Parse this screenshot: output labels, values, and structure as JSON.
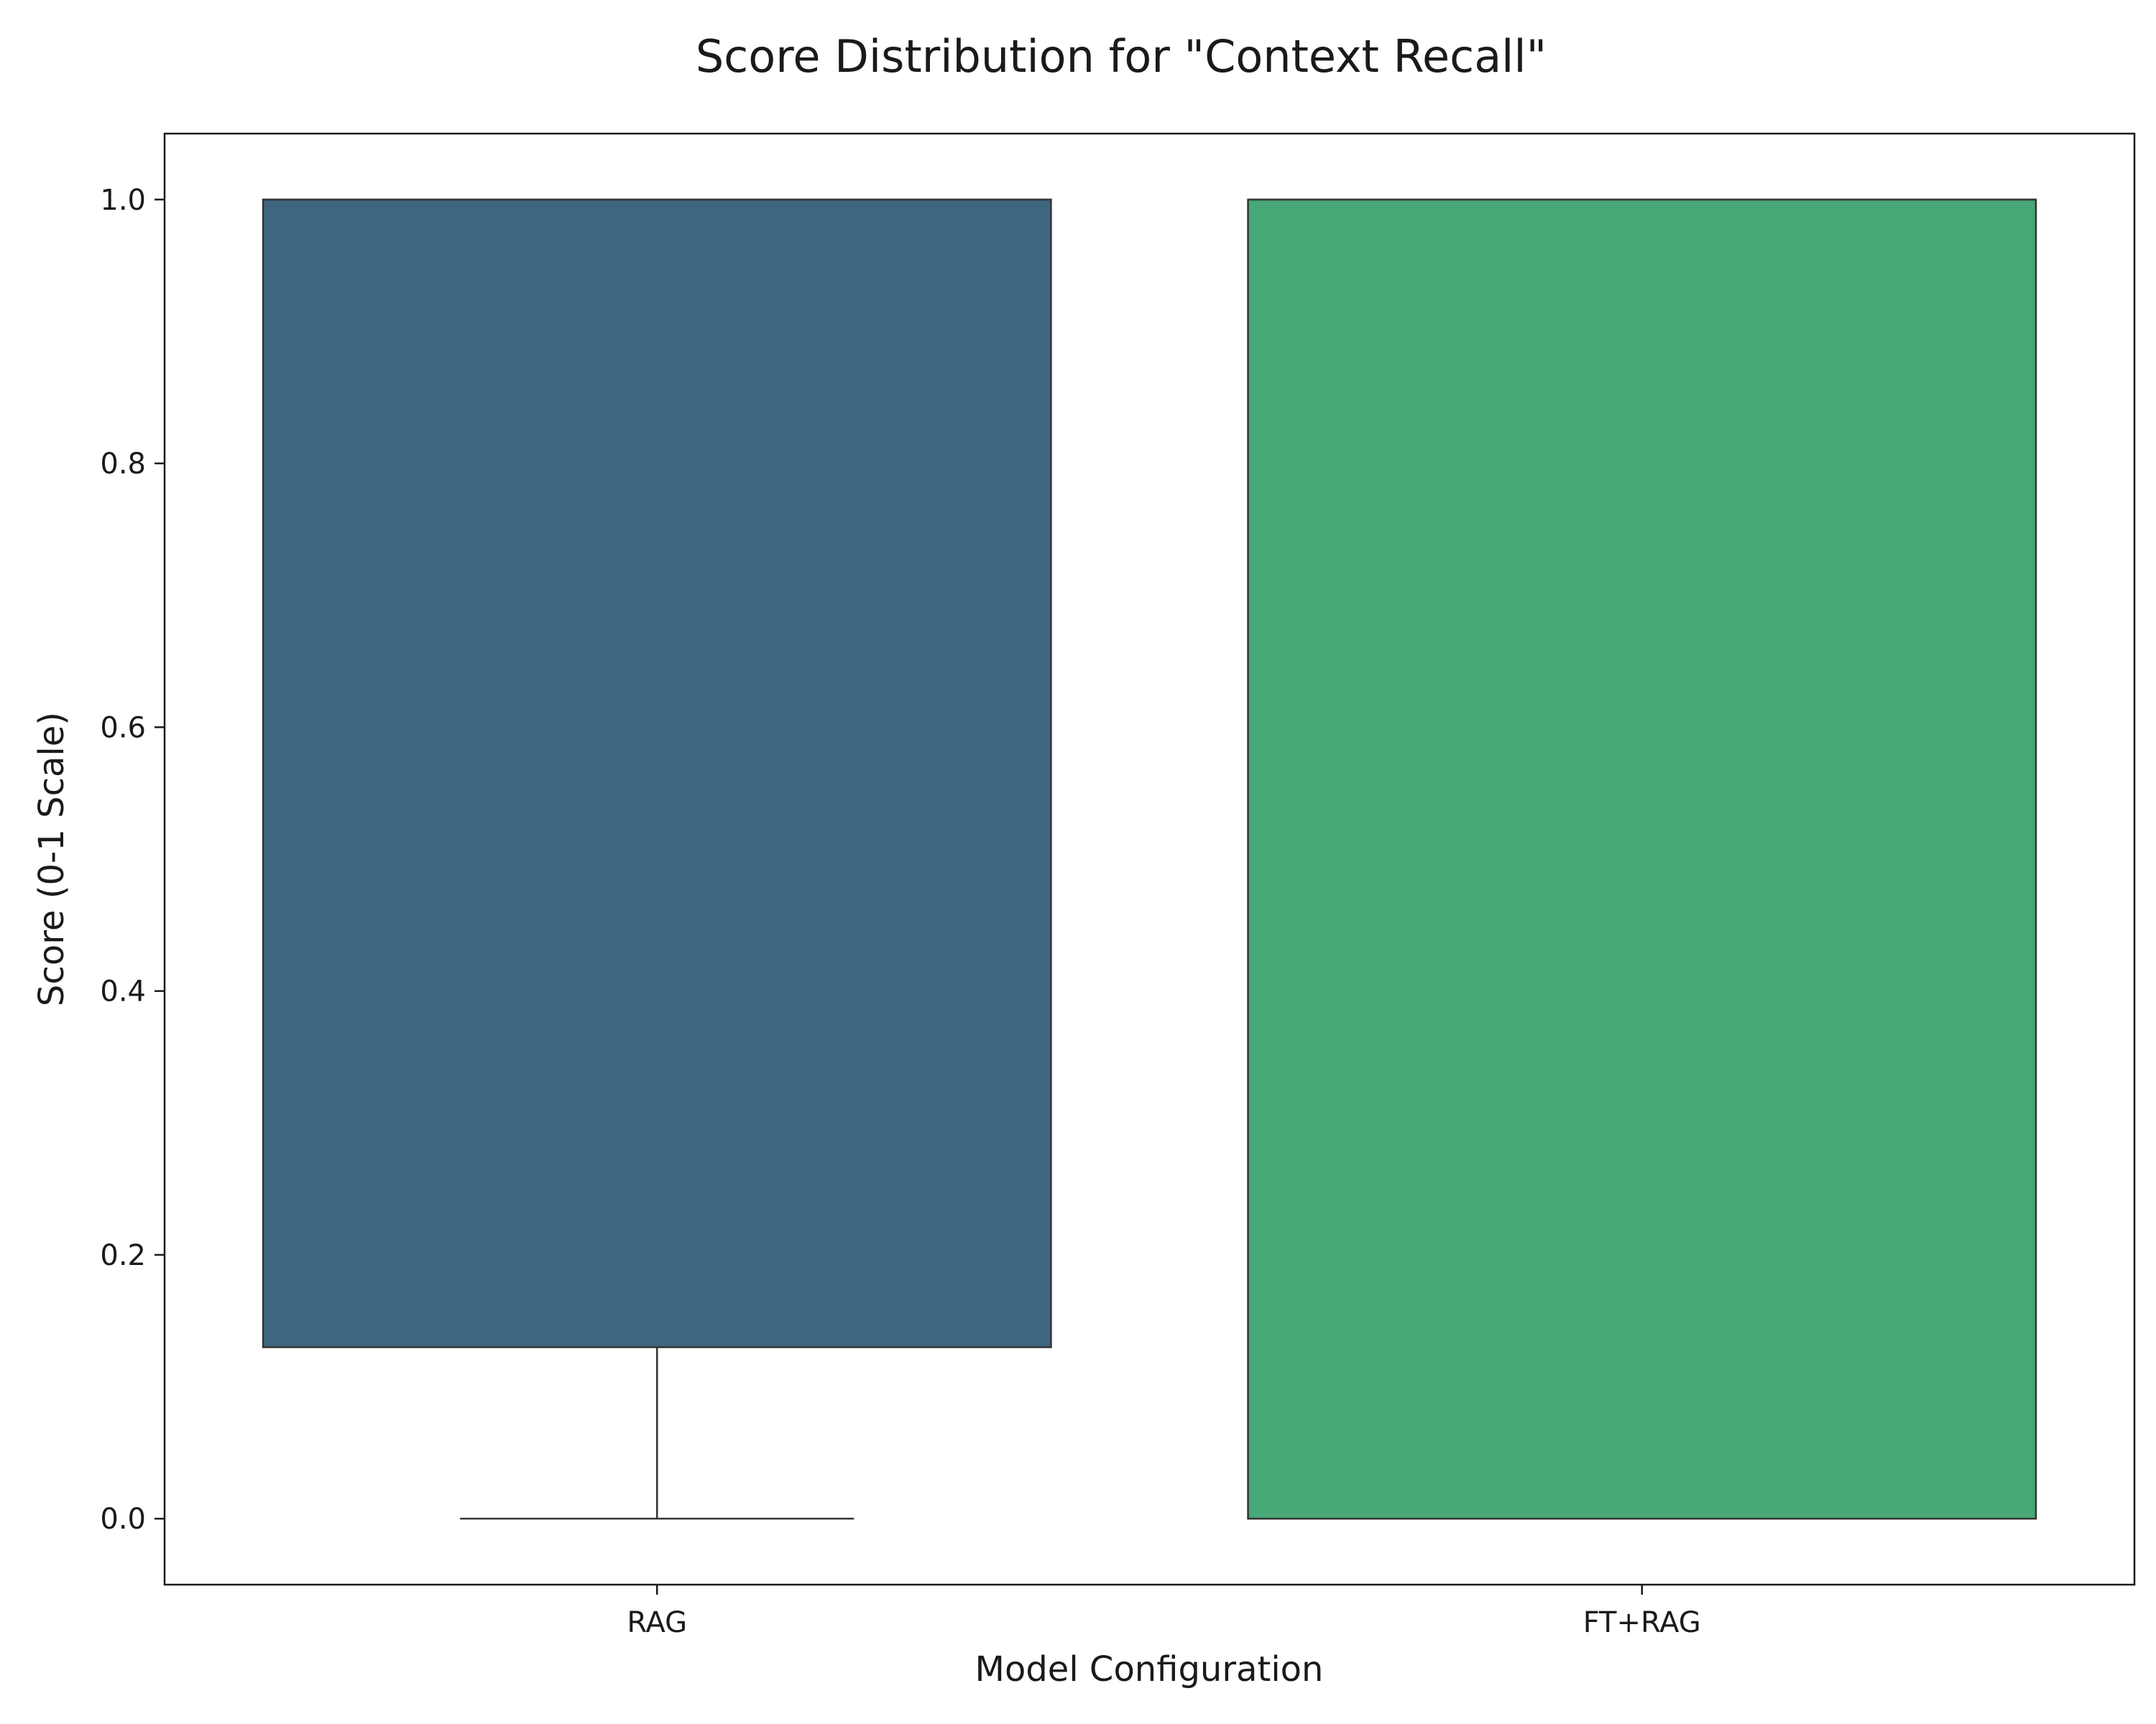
{
  "chart_data": {
    "type": "box",
    "title": "Score Distribution for \"Context Recall\"",
    "xlabel": "Model Configuration",
    "ylabel": "Score (0-1 Scale)",
    "ylim": [
      -0.05,
      1.05
    ],
    "yticks": [
      0.0,
      0.2,
      0.4,
      0.6,
      0.8,
      1.0
    ],
    "ytick_labels": [
      "0.0",
      "0.2",
      "0.4",
      "0.6",
      "0.8",
      "1.0"
    ],
    "grid": false,
    "categories": [
      "RAG",
      "FT+RAG"
    ],
    "boxes": [
      {
        "category": "RAG",
        "whisker_low": 0.0,
        "q1": 0.13,
        "median": 1.0,
        "q3": 1.0,
        "whisker_high": 1.0,
        "color": "#3f6680"
      },
      {
        "category": "FT+RAG",
        "whisker_low": 0.0,
        "q1": 0.0,
        "median": 1.0,
        "q3": 1.0,
        "whisker_high": 1.0,
        "color": "#48a878"
      }
    ]
  }
}
